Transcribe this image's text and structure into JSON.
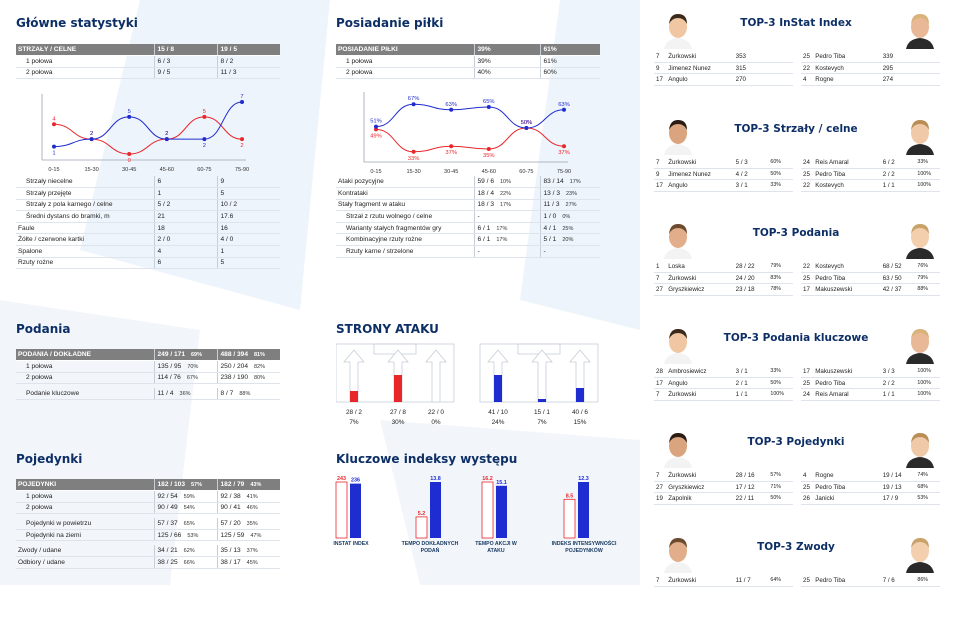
{
  "main_stats": {
    "title": "Główne statystyki",
    "shots_header": [
      "STRZAŁY / CELNE",
      "15 / 8",
      "19 / 5"
    ],
    "shots_rows": [
      [
        "1 połowa",
        "6 / 3",
        "8 / 2"
      ],
      [
        "2 połowa",
        "9 / 5",
        "11 / 3"
      ]
    ],
    "rows": [
      [
        "Strzały niecelne",
        "6",
        "9"
      ],
      [
        "Strzały przejęte",
        "1",
        "5"
      ],
      [
        "Strzały z pola karnego / celne",
        "5 / 2",
        "10 / 2"
      ],
      [
        "Średni dystans do bramki, m",
        "21",
        "17.6"
      ],
      [
        "Faule",
        "18",
        "16"
      ],
      [
        "Żółte / czerwone kartki",
        "2 / 0",
        "4 / 0"
      ],
      [
        "Spalone",
        "4",
        "1"
      ],
      [
        "Rzuty rożne",
        "6",
        "5"
      ]
    ]
  },
  "possession": {
    "title": "Posiadanie piłki",
    "header": [
      "POSIADANIE PIŁKI",
      "39%",
      "61%"
    ],
    "rows": [
      [
        "1 połowa",
        "39%",
        "61%"
      ],
      [
        "2 połowa",
        "40%",
        "60%"
      ]
    ],
    "attack_rows": [
      [
        "Ataki pozycyjne",
        "59 / 6",
        "10%",
        "83 / 14",
        "17%"
      ],
      [
        "Kontrataki",
        "18 / 4",
        "22%",
        "13 / 3",
        "23%"
      ],
      [
        "Stały fragment w ataku",
        "18 / 3",
        "17%",
        "11 / 3",
        "27%"
      ],
      [
        "Strzał z rzutu wolnego / celne",
        "-",
        "",
        "1 / 0",
        "0%"
      ],
      [
        "Warianty stałych fragmentów gry",
        "6 / 1",
        "17%",
        "4 / 1",
        "25%"
      ],
      [
        "Kombinacyjne rzuty rożne",
        "6 / 1",
        "17%",
        "5 / 1",
        "20%"
      ],
      [
        "Rzuty karne / strzelone",
        "-",
        "",
        "-",
        ""
      ]
    ]
  },
  "chart_data": [
    {
      "type": "line",
      "categories": [
        "0-15",
        "15-30",
        "30-45",
        "45-60",
        "60-75",
        "75-90"
      ],
      "series": [
        {
          "color": "#e8272b",
          "values": [
            4,
            2,
            0,
            2,
            5,
            2
          ]
        },
        {
          "color": "#1f2ccf",
          "values": [
            1,
            2,
            5,
            2,
            2,
            7
          ]
        }
      ]
    },
    {
      "type": "line",
      "categories": [
        "0-15",
        "15-30",
        "30-45",
        "45-60",
        "60-75",
        "75-90"
      ],
      "series": [
        {
          "color": "#e8272b",
          "values": [
            49,
            33,
            37,
            35,
            50,
            37
          ]
        },
        {
          "color": "#1f2ccf",
          "values": [
            51,
            67,
            63,
            65,
            50,
            63
          ]
        }
      ]
    },
    {
      "type": "bar",
      "categories": [
        "INSTAT INDEX",
        "TEMPO DOKŁADNYCH PODAŃ",
        "TEMPO AKCJI W ATAKU",
        "INDEKS INTENSYWNOŚCI POJEDYNKÓW"
      ],
      "series": [
        {
          "color": "#e8272b",
          "values": [
            243,
            5.2,
            16.2,
            8.5
          ]
        },
        {
          "color": "#1f2ccf",
          "values": [
            236,
            13.8,
            15.1,
            12.3
          ]
        }
      ]
    }
  ],
  "attack_sides": {
    "title": "STRONY ATAKU",
    "left": [
      {
        "val": "28 / 2",
        "pct": "7%",
        "level": 0.3
      },
      {
        "val": "27 / 8",
        "pct": "30%",
        "level": 0.75
      },
      {
        "val": "22 / 0",
        "pct": "0%",
        "level": 0
      }
    ],
    "right": [
      {
        "val": "41 / 10",
        "pct": "24%",
        "level": 0.75
      },
      {
        "val": "15 / 1",
        "pct": "7%",
        "level": 0.08
      },
      {
        "val": "40 / 6",
        "pct": "15%",
        "level": 0.4
      }
    ]
  },
  "passes": {
    "title": "Podania",
    "header": [
      "PODANIA / DOKŁADNE",
      "249 / 171",
      "69%",
      "488 / 394",
      "81%"
    ],
    "rows": [
      [
        "1 połowa",
        "135 / 95",
        "70%",
        "250 / 204",
        "82%"
      ],
      [
        "2 połowa",
        "114 / 76",
        "67%",
        "238 / 190",
        "80%"
      ]
    ],
    "key": [
      "Podanie kluczowe",
      "11 / 4",
      "36%",
      "8 / 7",
      "88%"
    ]
  },
  "duels": {
    "title": "Pojedynki",
    "header": [
      "POJEDYNKI",
      "182 / 103",
      "57%",
      "182 / 79",
      "43%"
    ],
    "rows": [
      [
        "1 połowa",
        "92 / 54",
        "59%",
        "92 / 38",
        "41%"
      ],
      [
        "2 połowa",
        "90 / 49",
        "54%",
        "90 / 41",
        "46%"
      ]
    ],
    "rows2": [
      [
        "Pojedynki w powietrzu",
        "57 / 37",
        "65%",
        "57 / 20",
        "35%"
      ],
      [
        "Pojedynki na ziemi",
        "125 / 66",
        "53%",
        "125 / 59",
        "47%"
      ]
    ],
    "rows3": [
      [
        "Zwody / udane",
        "34 / 21",
        "62%",
        "35 / 13",
        "37%"
      ],
      [
        "Odbiory / udane",
        "38 / 25",
        "66%",
        "38 / 17",
        "45%"
      ]
    ]
  },
  "kpi": {
    "title": "Kluczowe indeksy występu",
    "labels": [
      "INSTAT INDEX",
      "TEMPO DOKŁADNYCH\nPODAŃ",
      "TEMPO AKCJI W ATAKU",
      "INDEKS INTENSYWNOŚCI\nPOJEDYNKÓW"
    ],
    "red": [
      "243",
      "5.2",
      "16.2",
      "8.5"
    ],
    "blue": [
      "236",
      "13.8",
      "15.1",
      "12.3"
    ]
  },
  "top": [
    {
      "title": "TOP-3 InStat Index",
      "rows": [
        [
          "7",
          "Żurkowski",
          "353",
          "",
          "25",
          "Pedro Tiba",
          "339",
          ""
        ],
        [
          "9",
          "Jimenez Nunez",
          "315",
          "",
          "22",
          "Kostevych",
          "295",
          ""
        ],
        [
          "17",
          "Angulo",
          "270",
          "",
          "4",
          "Rogne",
          "274",
          ""
        ]
      ]
    },
    {
      "title": "TOP-3 Strzały / celne",
      "rows": [
        [
          "7",
          "Żurkowski",
          "5 / 3",
          "60%",
          "24",
          "Reis Amaral",
          "6 / 2",
          "33%"
        ],
        [
          "9",
          "Jimenez Nunez",
          "4 / 2",
          "50%",
          "25",
          "Pedro Tiba",
          "2 / 2",
          "100%"
        ],
        [
          "17",
          "Angulo",
          "3 / 1",
          "33%",
          "22",
          "Kostevych",
          "1 / 1",
          "100%"
        ]
      ]
    },
    {
      "title": "TOP-3 Podania",
      "rows": [
        [
          "1",
          "Loska",
          "28 / 22",
          "79%",
          "22",
          "Kostevych",
          "68 / 52",
          "76%"
        ],
        [
          "7",
          "Żurkowski",
          "24 / 20",
          "83%",
          "25",
          "Pedro Tiba",
          "63 / 50",
          "79%"
        ],
        [
          "27",
          "Gryszkiewicz",
          "23 / 18",
          "78%",
          "17",
          "Makuszewski",
          "42 / 37",
          "88%"
        ]
      ]
    },
    {
      "title": "TOP-3 Podania kluczowe",
      "rows": [
        [
          "28",
          "Ambrosiewicz",
          "3 / 1",
          "33%",
          "17",
          "Makuszewski",
          "3 / 3",
          "100%"
        ],
        [
          "17",
          "Angulo",
          "2 / 1",
          "50%",
          "25",
          "Pedro Tiba",
          "2 / 2",
          "100%"
        ],
        [
          "7",
          "Żurkowski",
          "1 / 1",
          "100%",
          "24",
          "Reis Amaral",
          "1 / 1",
          "100%"
        ]
      ]
    },
    {
      "title": "TOP-3 Pojedynki",
      "rows": [
        [
          "7",
          "Żurkowski",
          "28 / 16",
          "57%",
          "4",
          "Rogne",
          "19 / 14",
          "74%"
        ],
        [
          "27",
          "Gryszkiewicz",
          "17 / 12",
          "71%",
          "25",
          "Pedro Tiba",
          "19 / 13",
          "68%"
        ],
        [
          "19",
          "Zapolnik",
          "22 / 11",
          "50%",
          "26",
          "Janicki",
          "17 / 9",
          "53%"
        ]
      ]
    },
    {
      "title": "TOP-3 Zwody",
      "rows": [
        [
          "7",
          "Żurkowski",
          "11 / 7",
          "64%",
          "25",
          "Pedro Tiba",
          "7 / 6",
          "86%"
        ]
      ]
    }
  ]
}
